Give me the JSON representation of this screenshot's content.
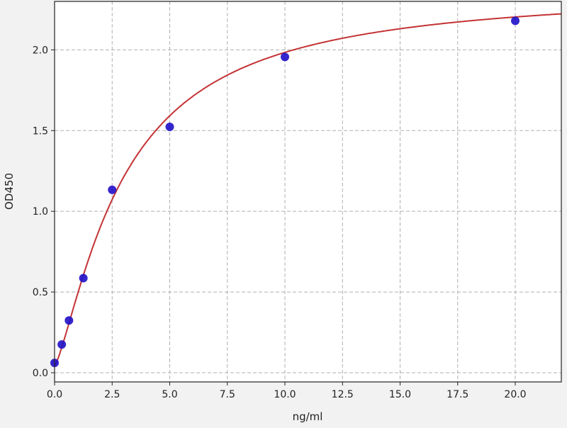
{
  "chart_data": {
    "type": "scatter",
    "title": "",
    "xlabel": "ng/ml",
    "ylabel": "OD450",
    "xlim": [
      0,
      22
    ],
    "ylim": [
      -0.057,
      2.3
    ],
    "grid": true,
    "x_ticks": [
      "0.0",
      "2.5",
      "5.0",
      "7.5",
      "10.0",
      "12.5",
      "15.0",
      "17.5",
      "20.0"
    ],
    "y_ticks": [
      "0.0",
      "0.5",
      "1.0",
      "1.5",
      "2.0"
    ],
    "series": [
      {
        "x": [
          0,
          0.3125,
          0.625,
          1.25,
          2.5,
          5,
          10,
          20
        ],
        "y": [
          0.061,
          0.175,
          0.324,
          0.586,
          1.133,
          1.523,
          1.956,
          2.18
        ],
        "marker_color": "#1f10c8"
      }
    ],
    "fit_curve": {
      "color": "#c0282a"
    }
  }
}
